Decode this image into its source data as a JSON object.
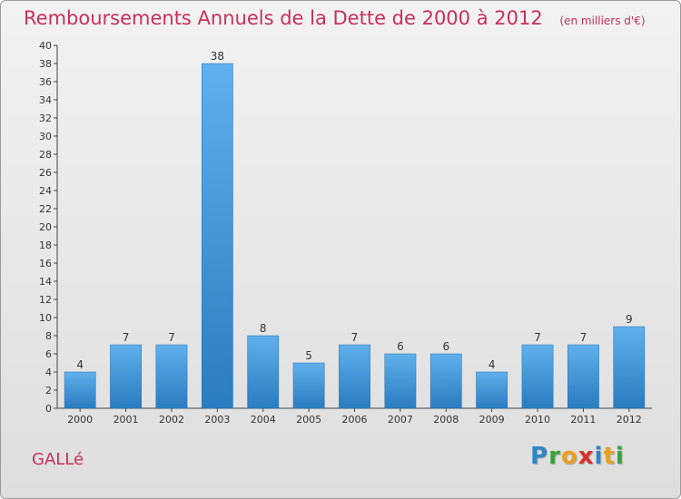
{
  "header": {
    "title": "Remboursements Annuels de la Dette de 2000 à 2012",
    "unit_note": "(en milliers d'€)"
  },
  "footer": {
    "town": "GALLé",
    "logo_letters": [
      "P",
      "r",
      "o",
      "x",
      "i",
      "t",
      "i"
    ],
    "logo_colors": [
      "#2e86c8",
      "#3aa23a",
      "#e8a020",
      "#d8302a",
      "#2e86c8",
      "#e8a020",
      "#3aa23a"
    ]
  },
  "chart_data": {
    "type": "bar",
    "categories": [
      "2000",
      "2001",
      "2002",
      "2003",
      "2004",
      "2005",
      "2006",
      "2007",
      "2008",
      "2009",
      "2010",
      "2011",
      "2012"
    ],
    "values": [
      4,
      7,
      7,
      38,
      8,
      5,
      7,
      6,
      6,
      4,
      7,
      7,
      9
    ],
    "title": "Remboursements Annuels de la Dette de 2000 à 2012",
    "ylim": [
      0,
      40
    ],
    "yticks": [
      0,
      2,
      4,
      6,
      8,
      10,
      12,
      14,
      16,
      18,
      20,
      22,
      24,
      26,
      28,
      30,
      32,
      34,
      36,
      38,
      40
    ],
    "grid": false,
    "bar_color": "#3a93d8"
  }
}
